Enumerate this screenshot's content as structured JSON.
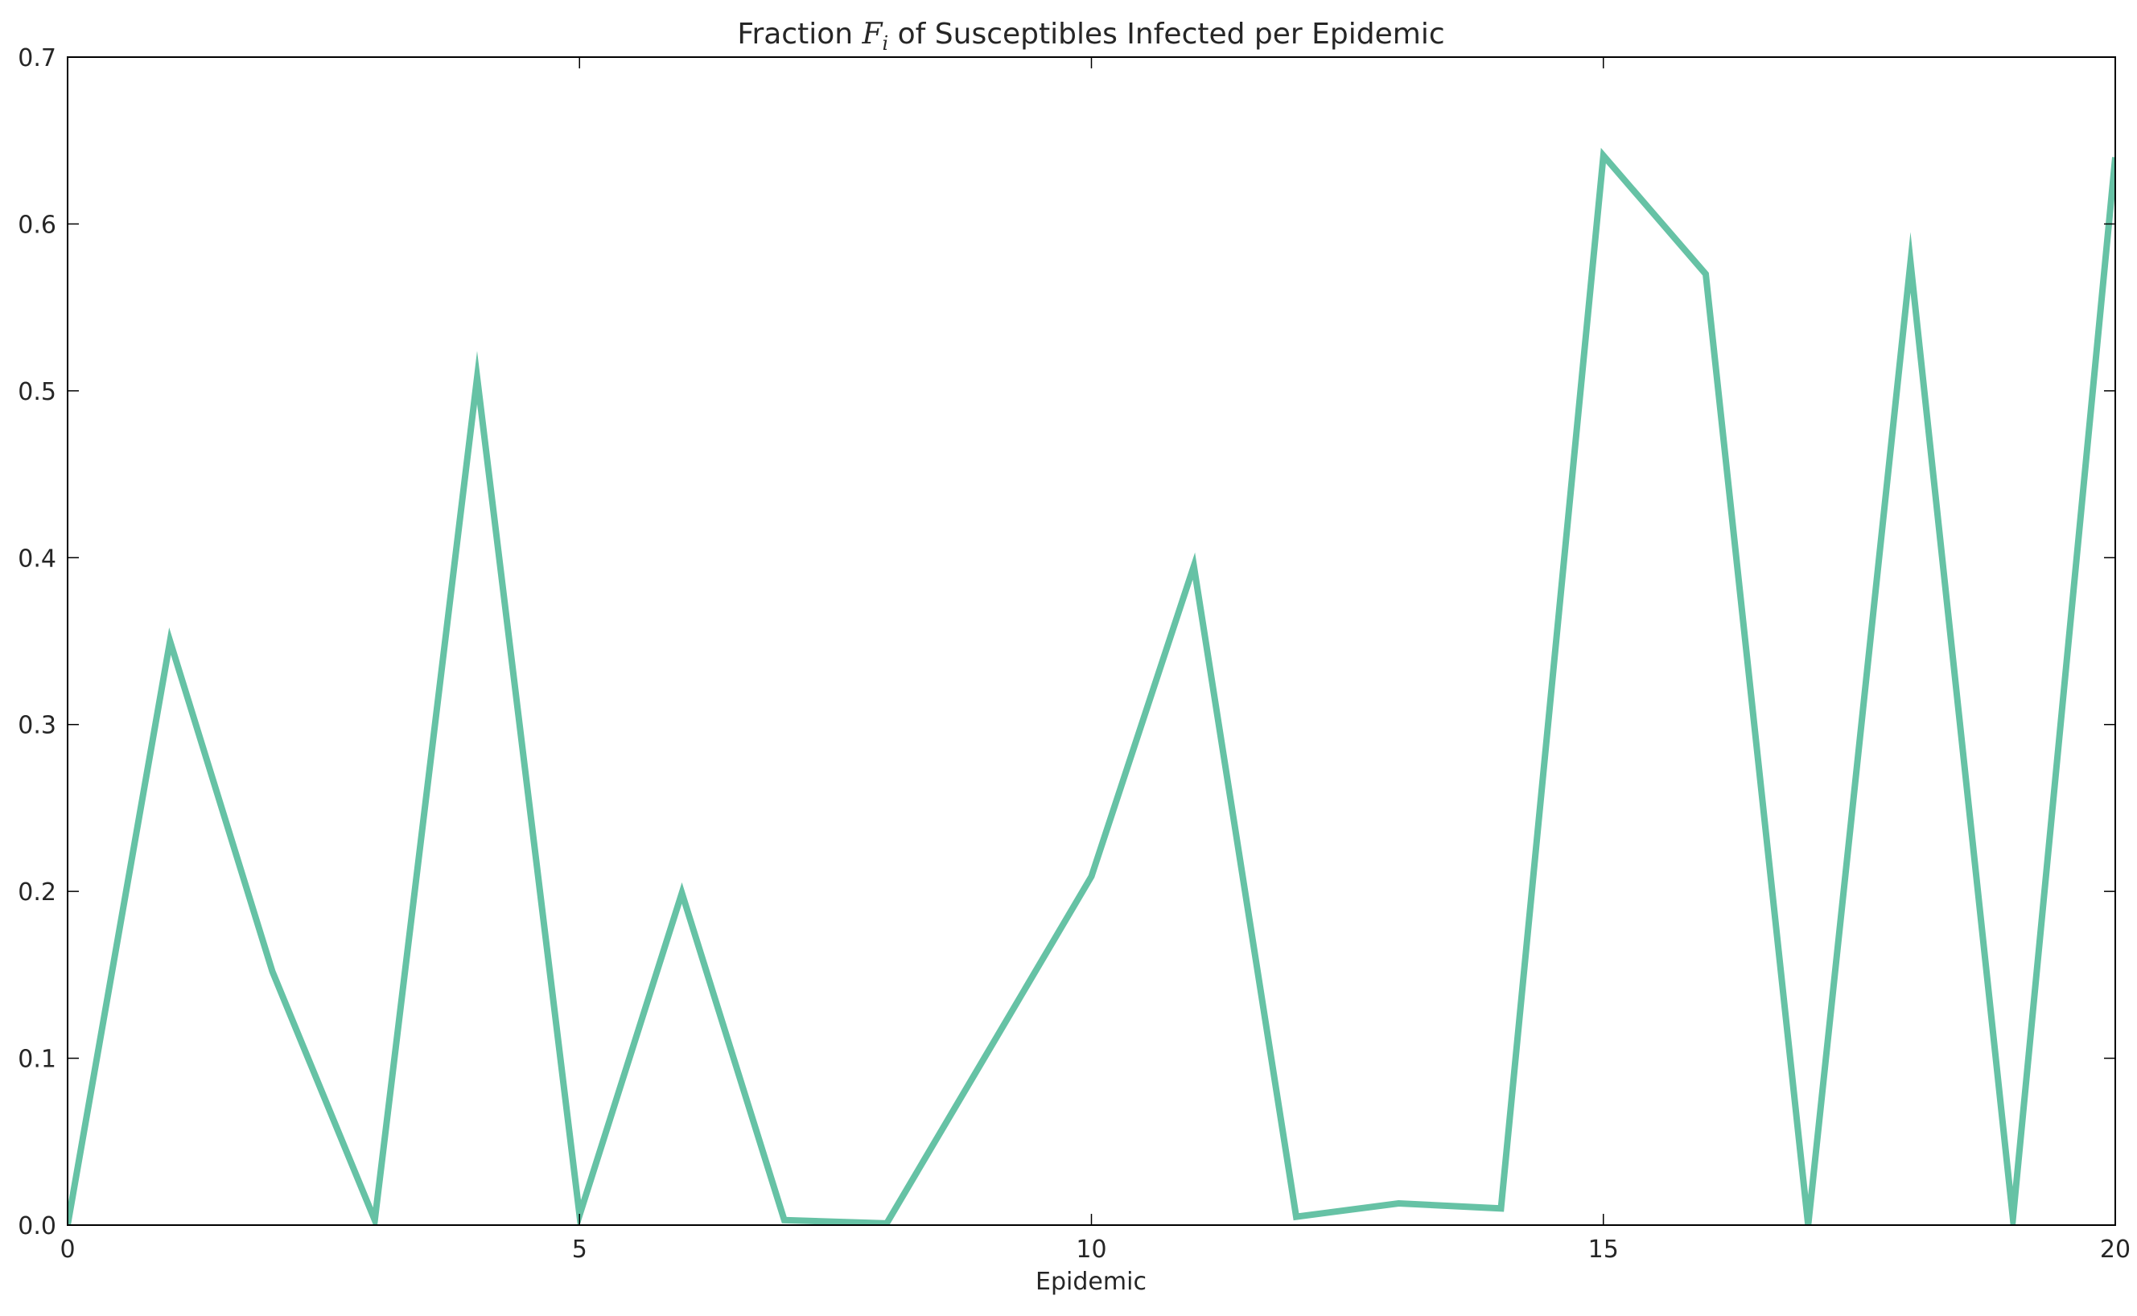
{
  "chart_data": {
    "type": "line",
    "title": "Fraction F_i of Susceptibles Infected per Epidemic",
    "title_parts": {
      "prefix": "Fraction ",
      "var": "F",
      "sub": "i",
      "suffix": " of Susceptibles Infected per Epidemic"
    },
    "xlabel": "Epidemic",
    "ylabel": "",
    "xlim": [
      0,
      20
    ],
    "ylim": [
      0,
      0.7
    ],
    "xticks": [
      0,
      5,
      10,
      15,
      20
    ],
    "xtick_labels": [
      "0",
      "5",
      "10",
      "15",
      "20"
    ],
    "yticks": [
      0.0,
      0.1,
      0.2,
      0.3,
      0.4,
      0.5,
      0.6,
      0.7
    ],
    "ytick_labels": [
      "0.0",
      "0.1",
      "0.2",
      "0.3",
      "0.4",
      "0.5",
      "0.6",
      "0.7"
    ],
    "grid": false,
    "series": [
      {
        "color": "#66c2a5",
        "x": [
          0,
          1,
          2,
          3,
          4,
          5,
          6,
          7,
          8,
          9,
          10,
          11,
          12,
          13,
          14,
          15,
          16,
          17,
          18,
          19,
          20
        ],
        "values": [
          0.0,
          0.35,
          0.152,
          0.003,
          0.508,
          0.006,
          0.199,
          0.003,
          0.001,
          0.105,
          0.209,
          0.395,
          0.005,
          0.013,
          0.01,
          0.641,
          0.57,
          0.0,
          0.577,
          0.004,
          0.64
        ]
      }
    ]
  }
}
